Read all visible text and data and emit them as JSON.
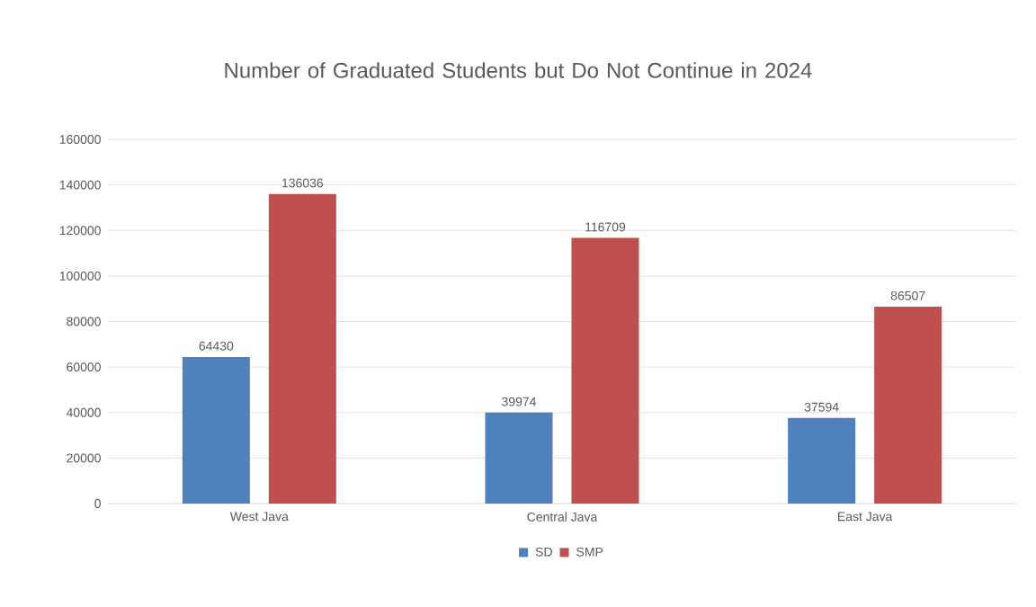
{
  "chart_data": {
    "type": "bar",
    "title": "Number of Graduated Students but Do Not Continue in 2024",
    "categories": [
      "West Java",
      "Central Java",
      "East Java"
    ],
    "series": [
      {
        "name": "SD",
        "color": "#4f81bd",
        "values": [
          64430,
          39974,
          37594
        ]
      },
      {
        "name": "SMP",
        "color": "#c0504d",
        "values": [
          136036,
          116709,
          86507
        ]
      }
    ],
    "ylim": [
      0,
      160000
    ],
    "yticks": [
      0,
      20000,
      40000,
      60000,
      80000,
      100000,
      120000,
      140000,
      160000
    ],
    "grid": "y",
    "legend": "bottom",
    "data_labels": true
  }
}
